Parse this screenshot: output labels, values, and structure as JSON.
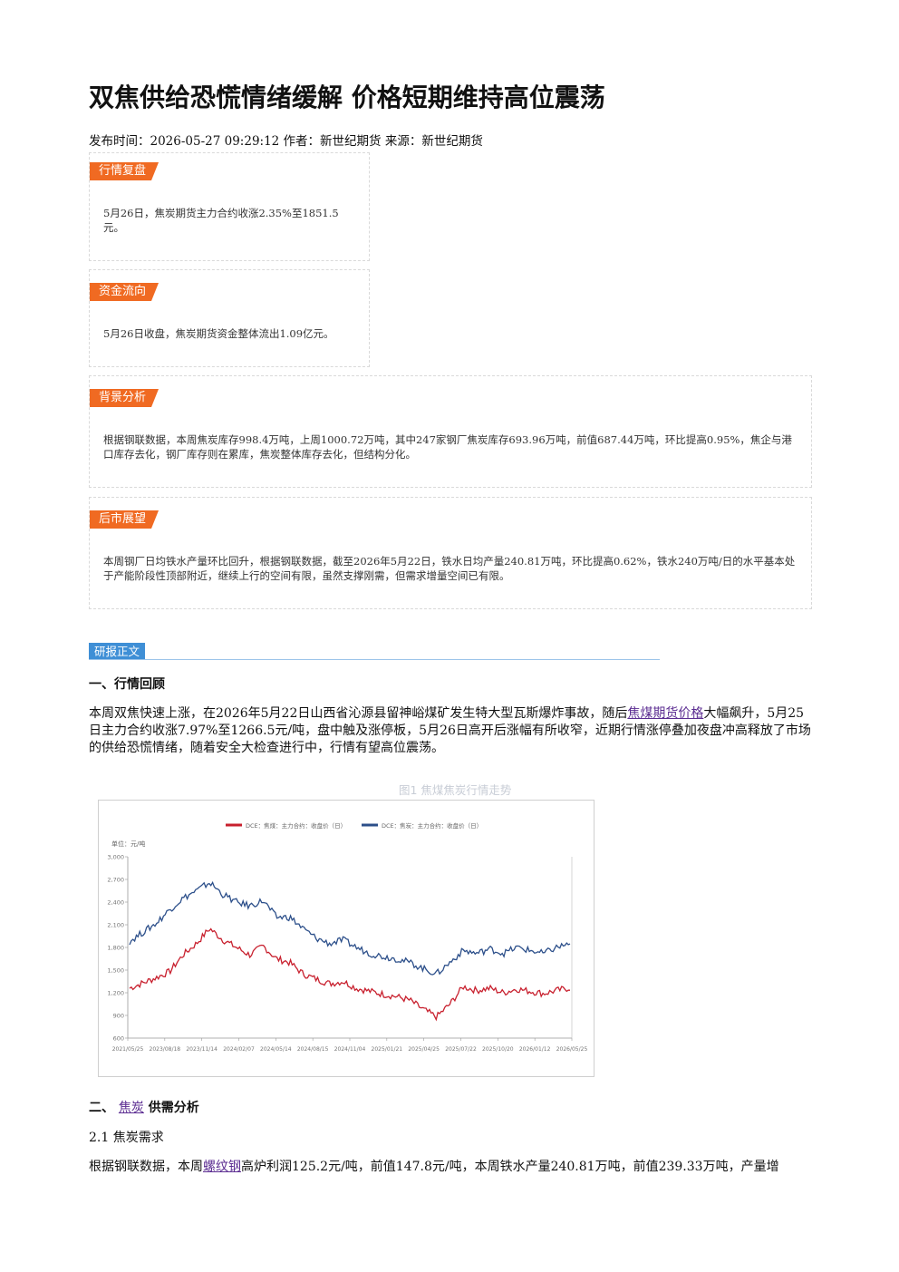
{
  "article": {
    "title": "双焦供给恐慌情绪缓解 价格短期维持高位震荡",
    "meta": "发布时间：2026-05-27 09:29:12 作者：新世纪期货 来源：新世纪期货"
  },
  "boxes": [
    {
      "tag": "行情复盘",
      "text": "5月26日，焦炭期货主力合约收涨2.35%至1851.5元。"
    },
    {
      "tag": "资金流向",
      "text": "5月26日收盘，焦炭期货资金整体流出1.09亿元。"
    },
    {
      "tag": "背景分析",
      "text": "根据钢联数据，本周焦炭库存998.4万吨，上周1000.72万吨，其中247家钢厂焦炭库存693.96万吨，前值687.44万吨，环比提高0.95%，焦企与港口库存去化，钢厂库存则在累库，焦炭整体库存去化，但结构分化。"
    },
    {
      "tag": "后市展望",
      "text": "本周钢厂日均铁水产量环比回升，根据钢联数据，截至2026年5月22日，铁水日均产量240.81万吨，环比提高0.62%，铁水240万吨/日的水平基本处于产能阶段性顶部附近，继续上行的空间有限，虽然支撑刚需，但需求增量空间已有限。"
    }
  ],
  "section": {
    "label": "研报正文",
    "h1": "一、行情回顾",
    "p1_a": "本周双焦快速上涨，在2026年5月22日山西省沁源县留神峪煤矿发生特大型瓦斯爆炸事故，随后",
    "p1_link": "焦煤期货价格",
    "p1_b": "大幅飙升，5月25日主力合约收涨7.97%至1266.5元/吨，盘中触及涨停板，5月26日高开后涨幅有所收窄，近期行情涨停叠加夜盘冲高释放了市场的供给恐慌情绪，随着安全大检查进行中，行情有望高位震荡。",
    "h2_prefix": "二、",
    "h2_link": "焦炭",
    "h2_suffix": "供需分析",
    "sub": "2.1 焦炭需求",
    "p2_a": "根据钢联数据，本周",
    "p2_link": "螺纹钢",
    "p2_b": "高炉利润125.2元/吨，前值147.8元/吨，本周铁水产量240.81万吨，前值239.33万吨，产量增"
  },
  "chart_data": {
    "type": "line",
    "title": "图1 焦煤焦炭行情走势",
    "unit_label": "单位：元/吨",
    "ylim": [
      600,
      3000
    ],
    "y_ticks": [
      "3,000",
      "2,700",
      "2,400",
      "2,100",
      "1,800",
      "1,500",
      "1,200",
      "900",
      "600"
    ],
    "x_ticks": [
      "2021/05/25",
      "2023/08/18",
      "2023/11/14",
      "2024/02/07",
      "2024/05/14",
      "2024/08/15",
      "2024/11/04",
      "2025/01/21",
      "2025/04/25",
      "2025/07/22",
      "2025/10/20",
      "2026/01/12",
      "2026/05/25"
    ],
    "series": [
      {
        "name": "DCE：焦煤：主力合约：收盘价（日）",
        "color": "#c8202e",
        "values": [
          1260,
          1330,
          1400,
          1480,
          1700,
          1850,
          2050,
          1900,
          1800,
          1700,
          1820,
          1650,
          1600,
          1450,
          1380,
          1320,
          1350,
          1260,
          1220,
          1180,
          1150,
          1100,
          980,
          880,
          1050,
          1280,
          1230,
          1260,
          1200,
          1250,
          1220,
          1190,
          1230,
          1266
        ]
      },
      {
        "name": "DCE：焦炭：主力合约：收盘价（日）",
        "color": "#2c4f8a",
        "values": [
          1880,
          2000,
          2120,
          2300,
          2450,
          2550,
          2660,
          2500,
          2400,
          2350,
          2420,
          2200,
          2200,
          2050,
          1920,
          1850,
          1900,
          1800,
          1720,
          1680,
          1650,
          1600,
          1520,
          1450,
          1600,
          1760,
          1720,
          1780,
          1720,
          1800,
          1760,
          1720,
          1800,
          1851
        ]
      }
    ]
  }
}
